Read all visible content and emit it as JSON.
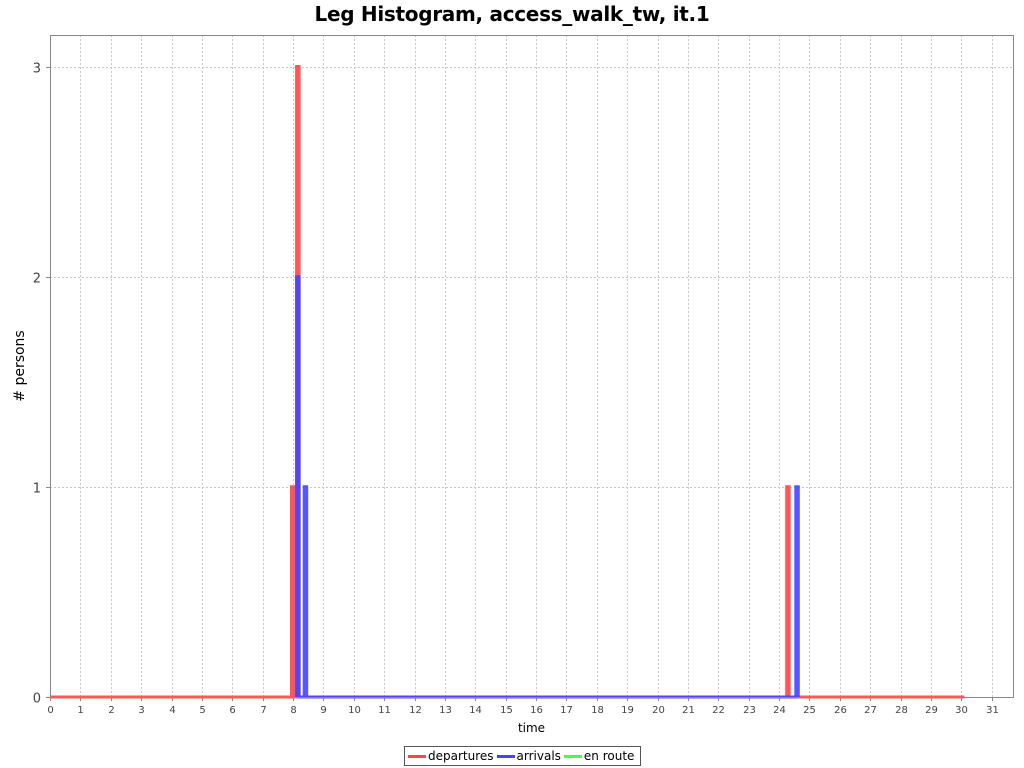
{
  "chart_data": {
    "type": "line",
    "title": "Leg Histogram, access_walk_tw, it.1",
    "xlabel": "time",
    "ylabel": "# persons",
    "xlim": [
      0,
      31.7
    ],
    "ylim": [
      0,
      3.15
    ],
    "xticks": [
      0,
      1,
      2,
      3,
      4,
      5,
      6,
      7,
      8,
      9,
      10,
      11,
      12,
      13,
      14,
      15,
      16,
      17,
      18,
      19,
      20,
      21,
      22,
      23,
      24,
      25,
      26,
      27,
      28,
      29,
      30,
      31
    ],
    "yticks": [
      0,
      1,
      2,
      3
    ],
    "grid": true,
    "legend_position": "bottom",
    "series": [
      {
        "name": "departures",
        "color": "#ff4444",
        "x": [
          0,
          7.95,
          7.95,
          8.033,
          8.033,
          8.117,
          8.117,
          8.2,
          8.2,
          24.25,
          24.25,
          24.333,
          24.333,
          30.1
        ],
        "y": [
          0,
          0,
          1,
          1,
          0,
          0,
          3,
          3,
          0,
          0,
          1,
          1,
          0,
          0
        ]
      },
      {
        "name": "arrivals",
        "color": "#4444ff",
        "x": [
          8.117,
          8.117,
          8.2,
          8.2,
          8.367,
          8.367,
          8.45,
          8.45,
          24.55,
          24.55,
          24.633,
          24.633
        ],
        "y": [
          0,
          2,
          2,
          0,
          0,
          1,
          1,
          0,
          0,
          1,
          1,
          0
        ]
      },
      {
        "name": "en route",
        "color": "#44ff44",
        "x": [],
        "y": []
      }
    ]
  }
}
